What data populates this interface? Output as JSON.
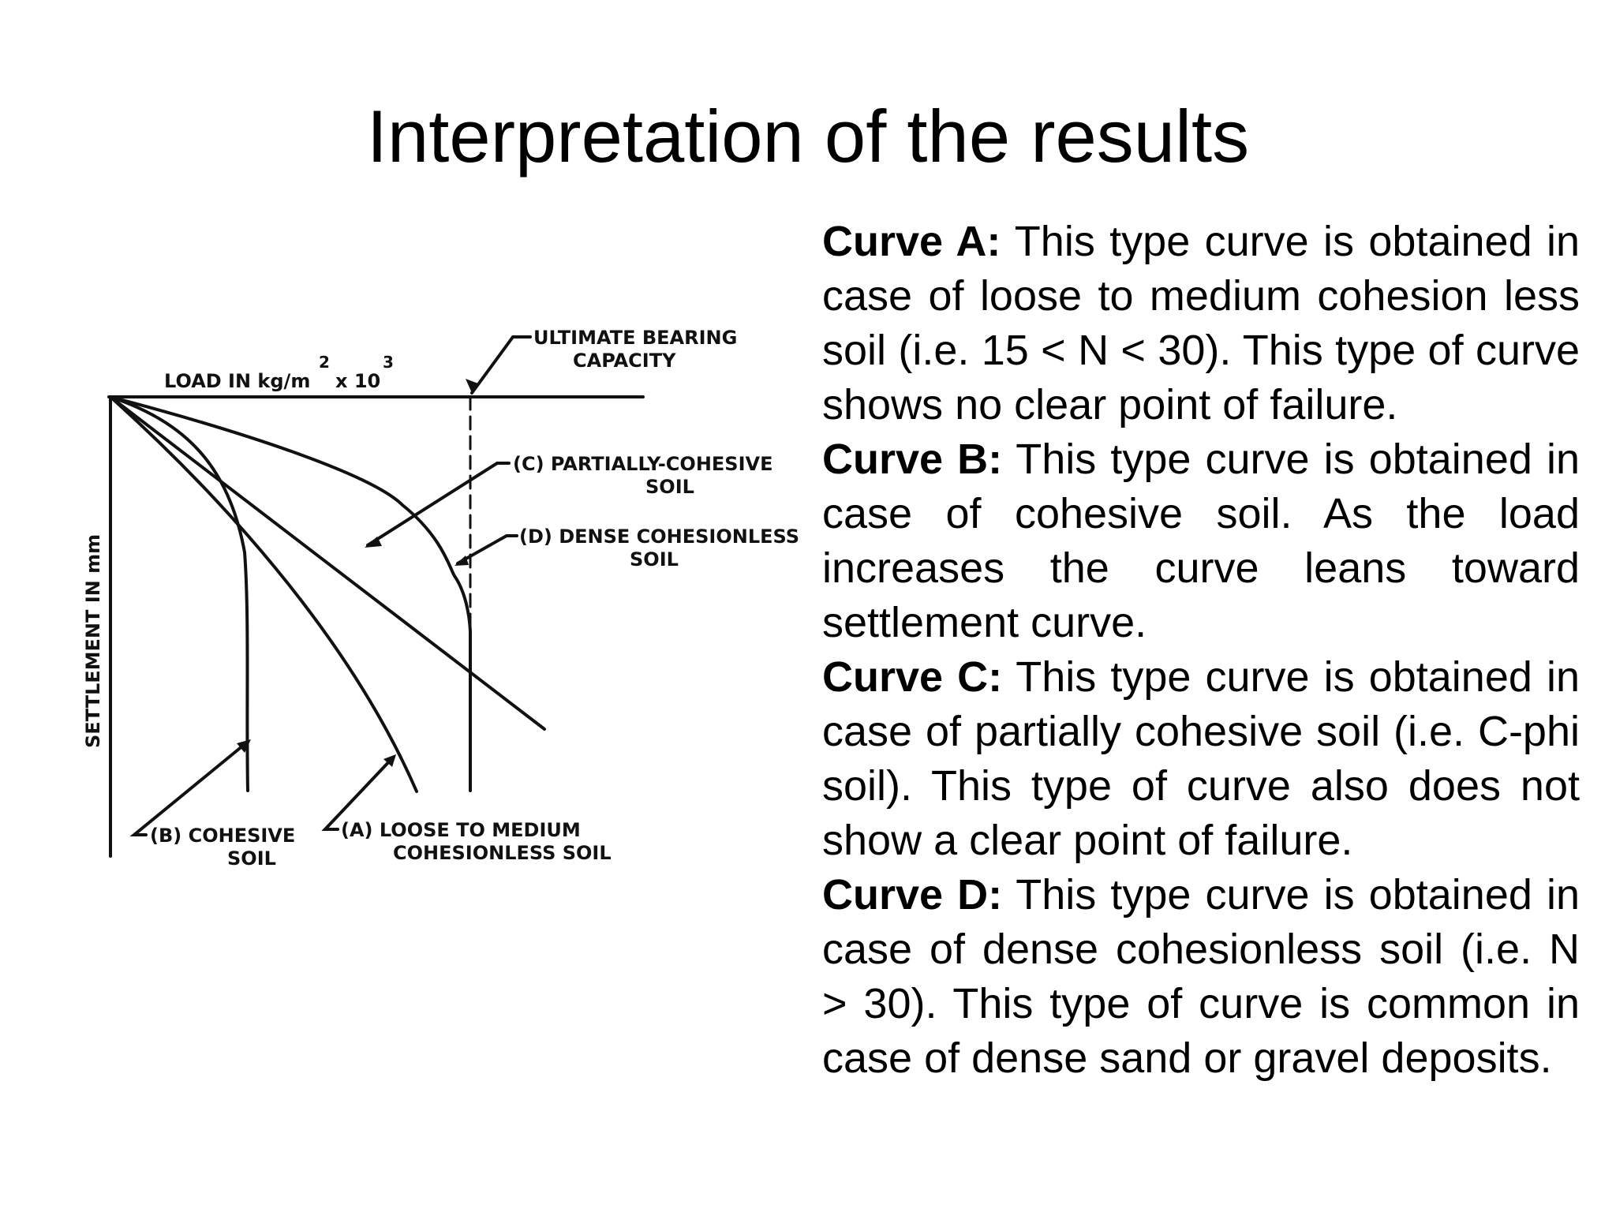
{
  "slide": {
    "title": "Interpretation of the results"
  },
  "diagram": {
    "x_axis_label": "LOAD IN kg/m",
    "x_axis_sup1": "2",
    "x_axis_mid": " x 10",
    "x_axis_sup2": "3",
    "y_axis_label": "SETTLEMENT IN mm",
    "ubc_label_line1": "ULTIMATE BEARING",
    "ubc_label_line2": "CAPACITY",
    "curve_c_line1": "(C) PARTIALLY-COHESIVE",
    "curve_c_line2": "SOIL",
    "curve_d_line1": "(D) DENSE COHESIONLESS",
    "curve_d_line2": "SOIL",
    "curve_b_line1": "(B) COHESIVE",
    "curve_b_line2": "SOIL",
    "curve_a_line1": "(A) LOOSE TO MEDIUM",
    "curve_a_line2": "COHESIONLESS SOIL"
  },
  "descriptions": [
    {
      "heading": "Curve A:",
      "text": " This type curve is obtained in case of loose to medium cohesion less soil (i.e. 15 < N < 30). This type of curve shows no clear point of failure."
    },
    {
      "heading": "Curve B:",
      "text": " This type curve is obtained in case of cohesive soil. As the load increases the curve leans toward settlement curve."
    },
    {
      "heading": "Curve C:",
      "text": " This type curve is obtained in case of partially cohesive soil (i.e. C-phi soil). This type of curve also does not show a clear point of failure."
    },
    {
      "heading": "Curve D:",
      "text": " This type curve is obtained in case of dense cohesionless soil (i.e. N > 30). This type of curve is common in case of dense sand or gravel deposits."
    }
  ]
}
